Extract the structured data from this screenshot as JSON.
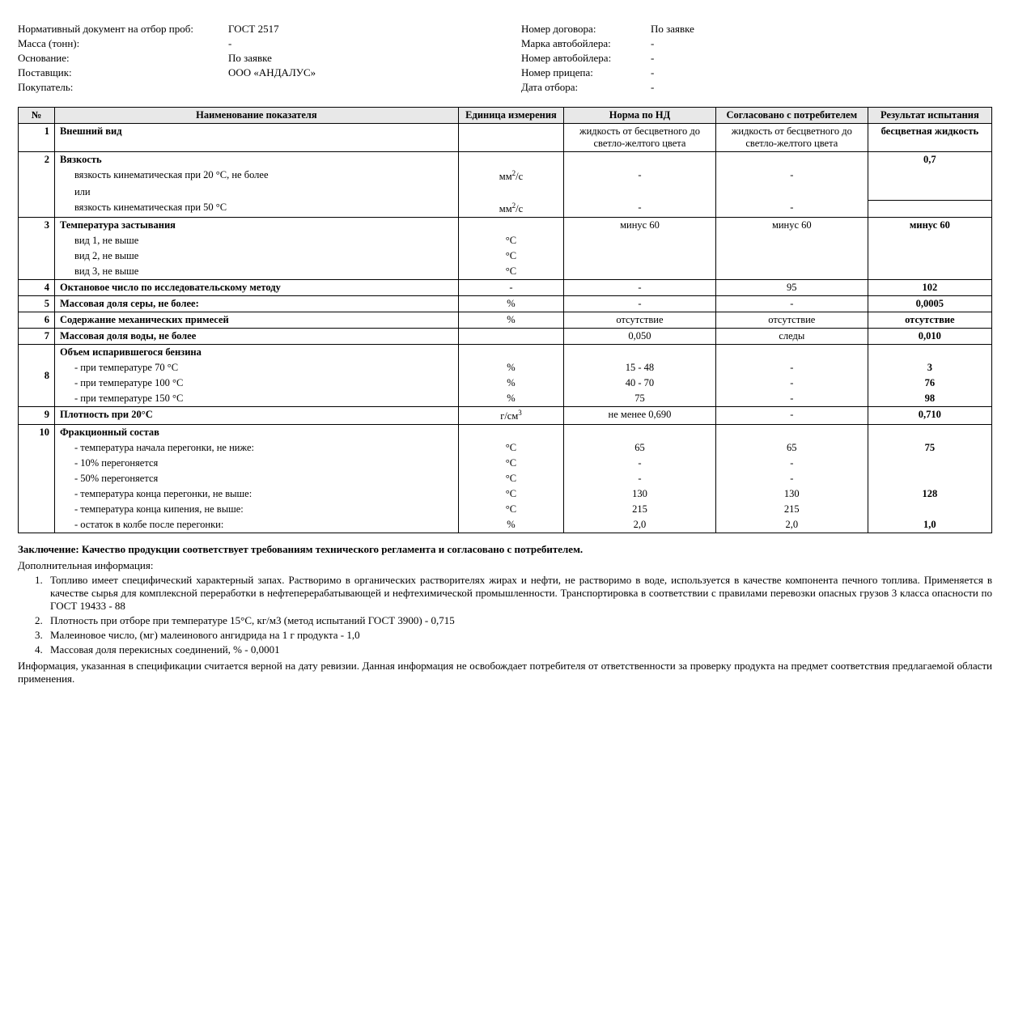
{
  "header": {
    "left": [
      {
        "label": "Нормативный документ на отбор проб:",
        "value": "ГОСТ 2517"
      },
      {
        "label": "Масса (тонн):",
        "value": "-"
      },
      {
        "label": "Основание:",
        "value": "По заявке"
      },
      {
        "label": "Поставщик:",
        "value": "ООО «АНДАЛУС»"
      },
      {
        "label": "Покупатель:",
        "value": ""
      }
    ],
    "right": [
      {
        "label": "Номер договора:",
        "value": "По заявке"
      },
      {
        "label": "Марка автобойлера:",
        "value": "-"
      },
      {
        "label": "Номер автобойлера:",
        "value": "-"
      },
      {
        "label": "Номер прицепа:",
        "value": "-"
      },
      {
        "label": "Дата отбора:",
        "value": "-"
      }
    ]
  },
  "table": {
    "columns": [
      "№",
      "Наименование показателя",
      "Единица измерения",
      "Норма по НД",
      "Согласовано с потребителем",
      "Результат испытания"
    ]
  },
  "rows": {
    "r1": {
      "num": "1",
      "name": "Внешний вид",
      "unit": "",
      "norm": "жидкость от бесцветного до светло-желтого цвета",
      "agreed": "жидкость от бесцветного до светло-желтого цвета",
      "result": "бесцветная жидкость"
    },
    "r2h": {
      "num": "2",
      "name": "Вязкость"
    },
    "r2a": {
      "name": "вязкость кинематическая при  20 °С, не более",
      "unit": "мм²/с",
      "norm": "-",
      "agreed": "-",
      "result": "0,7"
    },
    "r2b": {
      "name": "или",
      "unit": "",
      "norm": "",
      "agreed": "",
      "result": ""
    },
    "r2c": {
      "name": "вязкость кинематическая при 50 °С",
      "unit": "мм²/с",
      "norm": "-",
      "agreed": "-",
      "result": ""
    },
    "r3h": {
      "num": "3",
      "name": "Температура застывания"
    },
    "r3a": {
      "name": "вид 1, не выше",
      "unit": "°С",
      "norm": "минус 60",
      "agreed": "минус 60",
      "result": "минус 60"
    },
    "r3b": {
      "name": "вид 2, не выше",
      "unit": "°С"
    },
    "r3c": {
      "name": "вид 3, не выше",
      "unit": "°С"
    },
    "r4": {
      "num": "4",
      "name": "Октановое число по исследовательскому методу",
      "unit": "-",
      "norm": "-",
      "agreed": "95",
      "result": "102"
    },
    "r5": {
      "num": "5",
      "name": "Массовая доля серы, не более:",
      "unit": "%",
      "norm": "-",
      "agreed": "-",
      "result": "0,0005"
    },
    "r6": {
      "num": "6",
      "name": "Содержание механических примесей",
      "unit": "%",
      "norm": "отсутствие",
      "agreed": "отсутствие",
      "result": "отсутствие"
    },
    "r7": {
      "num": "7",
      "name": "Массовая доля воды, не более",
      "unit": "",
      "norm": "0,050",
      "agreed": "следы",
      "result": "0,010"
    },
    "r8h": {
      "num": "8",
      "name": "Объем испарившегося бензина"
    },
    "r8a": {
      "name": "-  при температуре 70 °С",
      "unit": "%",
      "norm": "15 - 48",
      "agreed": "-",
      "result": "3"
    },
    "r8b": {
      "name": "-  при температуре 100 °С",
      "unit": "%",
      "norm": "40 - 70",
      "agreed": "-",
      "result": "76"
    },
    "r8c": {
      "name": "-  при температуре 150 °С",
      "unit": "%",
      "norm": "75",
      "agreed": "-",
      "result": "98"
    },
    "r9": {
      "num": "9",
      "name": "Плотность при 20°С",
      "unit": "г/см³",
      "norm": "не менее 0,690",
      "agreed": "-",
      "result": "0,710"
    },
    "r10h": {
      "num": "10",
      "name": "Фракционный состав"
    },
    "r10a": {
      "name": "-  температура  начала перегонки, не ниже:",
      "unit": "°С",
      "norm": "65",
      "agreed": "65",
      "result": "75"
    },
    "r10b": {
      "name": "-  10% перегоняется",
      "unit": "°С",
      "norm": "-",
      "agreed": "-",
      "result": ""
    },
    "r10c": {
      "name": "-  50% перегоняется",
      "unit": "°С",
      "norm": "-",
      "agreed": "-",
      "result": ""
    },
    "r10d": {
      "name": "-  температура конца перегонки, не выше:",
      "unit": "°С",
      "norm": "130",
      "agreed": "130",
      "result": "128"
    },
    "r10e": {
      "name": "-  температура конца кипения, не выше:",
      "unit": "°С",
      "norm": "215",
      "agreed": "215",
      "result": ""
    },
    "r10f": {
      "name": "-  остаток в колбе после перегонки:",
      "unit": "%",
      "norm": "2,0",
      "agreed": "2,0",
      "result": "1,0"
    }
  },
  "conclusion": "Заключение: Качество продукции соответствует требованиям технического регламента и согласовано с потребителем.",
  "addinfo_title": "Дополнительная информация:",
  "notes": [
    "Топливо имеет специфический характерный запах. Растворимо в органических растворителях жирах и нефти, не растворимо в воде, используется в качестве компонента печного топлива. Применяется в качестве сырья для комплексной переработки в нефтеперерабатывающей и нефтехимической промышленности. Транспортировка в соответствии с правилами перевозки опасных грузов 3 класса опасности по ГОСТ 19433 - 88",
    "Плотность при отборе при температуре 15°С, кг/м3 (метод испытаний ГОСТ 3900) - 0,715",
    "Малеиновое число, (мг) малеинового ангидрида на 1 г продукта  - 1,0",
    "Массовая доля перекисных соединений, %  - 0,0001"
  ],
  "footer": "Информация, указанная в спецификации считается верной на дату ревизии. Данная информация не освобождает потребителя от ответственности за проверку продукта на предмет соответствия предлагаемой области применения."
}
